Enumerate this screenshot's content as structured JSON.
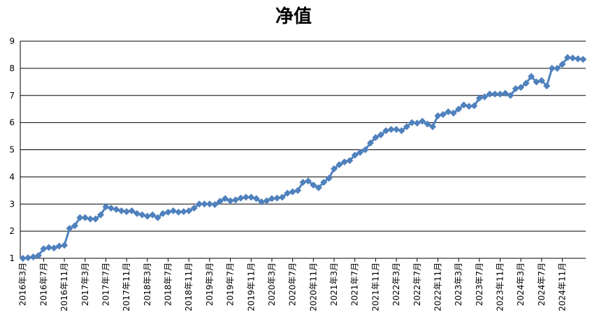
{
  "chart_data": {
    "type": "line",
    "title": "净值",
    "categories": [
      "2016年3月",
      null,
      null,
      null,
      "2016年7月",
      null,
      null,
      null,
      "2016年11月",
      null,
      null,
      null,
      "2017年3月",
      null,
      null,
      null,
      "2017年7月",
      null,
      null,
      null,
      "2017年11月",
      null,
      null,
      null,
      "2018年3月",
      null,
      null,
      null,
      "2018年7月",
      null,
      null,
      null,
      "2018年11月",
      null,
      null,
      null,
      "2019年3月",
      null,
      null,
      null,
      "2019年7月",
      null,
      null,
      null,
      "2019年11月",
      null,
      null,
      null,
      "2020年3月",
      null,
      null,
      null,
      "2020年7月",
      null,
      null,
      null,
      "2020年11月",
      null,
      null,
      null,
      "2021年3月",
      null,
      null,
      null,
      "2021年7月",
      null,
      null,
      null,
      "2021年11月",
      null,
      null,
      null,
      "2022年3月",
      null,
      null,
      null,
      "2022年7月",
      null,
      null,
      null,
      "2022年11月",
      null,
      null,
      null,
      "2023年3月",
      null,
      null,
      null,
      "2023年7月",
      null,
      null,
      null,
      "2023年11月",
      null,
      null,
      null,
      "2024年3月",
      null,
      null,
      null,
      "2024年7月",
      null,
      null,
      null,
      "2024年11月",
      null,
      null,
      null,
      null
    ],
    "values": [
      1.0,
      1.02,
      1.05,
      1.1,
      1.35,
      1.4,
      1.38,
      1.45,
      1.48,
      2.1,
      2.2,
      2.5,
      2.5,
      2.45,
      2.45,
      2.6,
      2.9,
      2.85,
      2.8,
      2.75,
      2.72,
      2.75,
      2.65,
      2.6,
      2.55,
      2.6,
      2.5,
      2.65,
      2.7,
      2.75,
      2.7,
      2.72,
      2.75,
      2.85,
      3.0,
      3.0,
      3.0,
      2.98,
      3.1,
      3.2,
      3.12,
      3.15,
      3.22,
      3.25,
      3.25,
      3.2,
      3.08,
      3.12,
      3.2,
      3.22,
      3.25,
      3.4,
      3.45,
      3.5,
      3.8,
      3.85,
      3.7,
      3.6,
      3.8,
      3.95,
      4.3,
      4.45,
      4.55,
      4.6,
      4.8,
      4.9,
      5.0,
      5.25,
      5.45,
      5.55,
      5.7,
      5.75,
      5.75,
      5.7,
      5.85,
      6.0,
      5.98,
      6.05,
      5.95,
      5.85,
      6.25,
      6.3,
      6.4,
      6.35,
      6.5,
      6.65,
      6.6,
      6.62,
      6.9,
      6.95,
      7.05,
      7.05,
      7.05,
      7.08,
      7.0,
      7.25,
      7.3,
      7.45,
      7.7,
      7.5,
      7.55,
      7.35,
      8.0,
      8.0,
      8.15,
      8.4,
      8.38,
      8.35,
      8.33
    ],
    "color": "#4f81bd",
    "ylim": [
      1,
      9
    ],
    "yticks": [
      1,
      2,
      3,
      4,
      5,
      6,
      7,
      8,
      9
    ],
    "grid": true
  }
}
